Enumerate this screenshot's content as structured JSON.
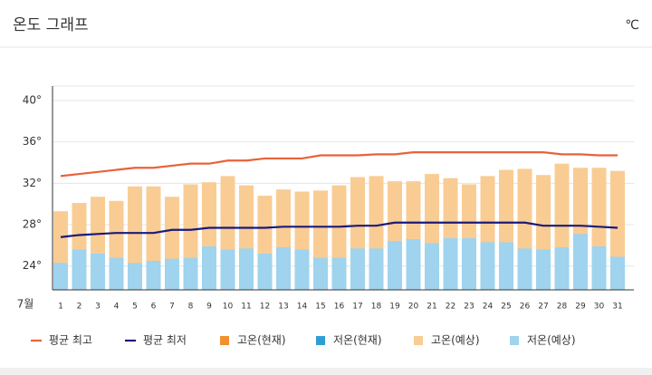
{
  "chart_data": {
    "type": "bar",
    "title": "온도 그래프",
    "unit": "℃",
    "x_label": "7월",
    "categories": [
      "1",
      "2",
      "3",
      "4",
      "5",
      "6",
      "7",
      "8",
      "9",
      "10",
      "11",
      "12",
      "13",
      "14",
      "15",
      "16",
      "17",
      "18",
      "19",
      "20",
      "21",
      "22",
      "23",
      "24",
      "25",
      "26",
      "27",
      "28",
      "29",
      "30",
      "31"
    ],
    "ylim": [
      21.7,
      41.4
    ],
    "yticks": [
      {
        "value": 24,
        "label": "24°"
      },
      {
        "value": 28,
        "label": "28°"
      },
      {
        "value": 32,
        "label": "32°"
      },
      {
        "value": 36,
        "label": "36°"
      },
      {
        "value": 40,
        "label": "40°"
      }
    ],
    "grid": true,
    "legend": "bottom",
    "series": [
      {
        "name": "평균 최고",
        "type": "line",
        "color": "#e8623a",
        "values": [
          32.7,
          32.9,
          33.1,
          33.3,
          33.5,
          33.5,
          33.7,
          33.9,
          33.9,
          34.2,
          34.2,
          34.4,
          34.4,
          34.4,
          34.7,
          34.7,
          34.7,
          34.8,
          34.8,
          35.0,
          35.0,
          35.0,
          35.0,
          35.0,
          35.0,
          35.0,
          35.0,
          34.8,
          34.8,
          34.7,
          34.7
        ]
      },
      {
        "name": "평균 최저",
        "type": "line",
        "color": "#1c1a78",
        "values": [
          26.8,
          27.0,
          27.1,
          27.2,
          27.2,
          27.2,
          27.5,
          27.5,
          27.7,
          27.7,
          27.7,
          27.7,
          27.8,
          27.8,
          27.8,
          27.8,
          27.9,
          27.9,
          28.2,
          28.2,
          28.2,
          28.2,
          28.2,
          28.2,
          28.2,
          28.2,
          27.9,
          27.9,
          27.9,
          27.8,
          27.7
        ]
      },
      {
        "name": "고온(현재)",
        "type": "bar",
        "color": "#f0912e",
        "values": [
          null,
          null,
          null,
          null,
          null,
          null,
          null,
          null,
          null,
          null,
          null,
          null,
          null,
          null,
          null,
          null,
          null,
          null,
          null,
          null,
          null,
          null,
          null,
          null,
          null,
          null,
          null,
          null,
          null,
          null,
          null
        ]
      },
      {
        "name": "저온(현재)",
        "type": "bar",
        "color": "#2e9fd6",
        "values": [
          null,
          null,
          null,
          null,
          null,
          null,
          null,
          null,
          null,
          null,
          null,
          null,
          null,
          null,
          null,
          null,
          null,
          null,
          null,
          null,
          null,
          null,
          null,
          null,
          null,
          null,
          null,
          null,
          null,
          null,
          null
        ]
      },
      {
        "name": "고온(예상)",
        "type": "bar",
        "color": "#f9cc94",
        "values": [
          29.3,
          30.1,
          30.7,
          30.3,
          31.7,
          31.7,
          30.7,
          31.9,
          32.1,
          32.7,
          31.8,
          30.8,
          31.4,
          31.2,
          31.3,
          31.8,
          32.6,
          32.7,
          32.2,
          32.2,
          32.9,
          32.5,
          31.9,
          32.7,
          33.3,
          33.4,
          32.8,
          33.9,
          33.5,
          33.5,
          33.2
        ]
      },
      {
        "name": "저온(예상)",
        "type": "bar",
        "color": "#9fd3ee",
        "values": [
          24.3,
          25.6,
          25.2,
          24.8,
          24.3,
          24.5,
          24.7,
          24.8,
          25.9,
          25.6,
          25.7,
          25.2,
          25.8,
          25.6,
          24.8,
          24.8,
          25.7,
          25.7,
          26.4,
          26.6,
          26.2,
          26.7,
          26.7,
          26.3,
          26.3,
          25.7,
          25.6,
          25.8,
          27.1,
          25.9,
          24.9
        ]
      }
    ]
  }
}
